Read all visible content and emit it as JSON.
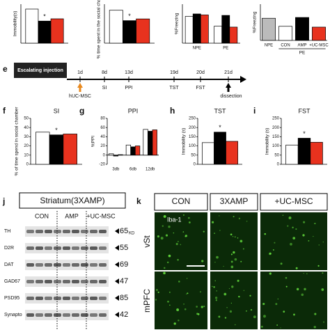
{
  "chart_data": [
    {
      "type": "bar",
      "ylabel": "Immobility(s)",
      "categories": [
        null
      ],
      "series": [
        {
          "color": "#ffffff",
          "values": [
            105
          ]
        },
        {
          "color": "#000000",
          "values": [
            68
          ]
        },
        {
          "color": "#e8321e",
          "values": [
            75
          ]
        }
      ],
      "ylim": [
        0,
        120
      ],
      "annotation": "*"
    },
    {
      "type": "bar",
      "ylabel": "% time spent in the social chamber",
      "categories": [
        null
      ],
      "series": [
        {
          "color": "#ffffff",
          "values": [
            38
          ]
        },
        {
          "color": "#000000",
          "values": [
            26
          ]
        },
        {
          "color": "#e8321e",
          "values": [
            28
          ]
        }
      ],
      "ylim": [
        0,
        45
      ],
      "annotation": "*"
    },
    {
      "type": "bar",
      "ylabel": "%Freezing",
      "categories": [
        "NPE",
        "PE"
      ],
      "series": [
        {
          "color": "#ffffff",
          "values": [
            55,
            35
          ]
        },
        {
          "color": "#000000",
          "values": [
            60,
            57
          ]
        },
        {
          "color": "#e8321e",
          "values": [
            58,
            33
          ]
        }
      ],
      "ylim": [
        0,
        80
      ]
    },
    {
      "type": "bar",
      "ylabel": "%Freezing",
      "categories": [
        "NPE",
        "CON",
        "AMP",
        "+UC-MSC"
      ],
      "group_label": "PE",
      "series": [
        {
          "colors": [
            "#bbbbbb",
            "#ffffff",
            "#000000",
            "#e8321e"
          ],
          "values": [
            55,
            35,
            57,
            33
          ]
        }
      ],
      "ylim": [
        0,
        90
      ]
    },
    {
      "type": "bar",
      "panel": "f",
      "title": "SI",
      "ylabel": "% of time spend in social chamber",
      "categories": [
        null
      ],
      "series": [
        {
          "color": "#ffffff",
          "values": [
            35
          ]
        },
        {
          "color": "#000000",
          "values": [
            32
          ]
        },
        {
          "color": "#e8321e",
          "values": [
            33
          ]
        }
      ],
      "ylim": [
        0,
        50
      ],
      "yticks": [
        0,
        10,
        20,
        30,
        40,
        50
      ],
      "annotation": "*"
    },
    {
      "type": "bar",
      "panel": "g",
      "title": "PPI",
      "ylabel": "%PPI",
      "categories": [
        "3db",
        "6db",
        "12db"
      ],
      "series": [
        {
          "color": "#ffffff",
          "values": [
            3,
            22,
            56
          ]
        },
        {
          "color": "#000000",
          "values": [
            -2,
            18,
            52
          ]
        },
        {
          "color": "#e8321e",
          "values": [
            1,
            20,
            55
          ]
        }
      ],
      "ylim": [
        -20,
        80
      ],
      "yticks": [
        -20,
        0,
        20,
        40,
        60,
        80
      ]
    },
    {
      "type": "bar",
      "panel": "h",
      "title": "TST",
      "ylabel": "Immobility (s)",
      "categories": [
        null
      ],
      "series": [
        {
          "color": "#ffffff",
          "values": [
            118
          ]
        },
        {
          "color": "#000000",
          "values": [
            175
          ]
        },
        {
          "color": "#e8321e",
          "values": [
            125
          ]
        }
      ],
      "ylim": [
        0,
        250
      ],
      "yticks": [
        0,
        50,
        100,
        150,
        200,
        250
      ],
      "annotation": "*"
    },
    {
      "type": "bar",
      "panel": "i",
      "title": "FST",
      "ylabel": "Immobility (s)",
      "categories": [
        null
      ],
      "series": [
        {
          "color": "#ffffff",
          "values": [
            105
          ]
        },
        {
          "color": "#000000",
          "values": [
            142
          ]
        },
        {
          "color": "#e8321e",
          "values": [
            120
          ]
        }
      ],
      "ylim": [
        0,
        250
      ],
      "yticks": [
        0,
        50,
        100,
        150,
        200,
        250
      ],
      "annotation": "*"
    }
  ],
  "timeline": {
    "panel": "e",
    "box": "Escalating injection",
    "days": [
      "1d",
      "8d",
      "13d",
      "19d",
      "20d",
      "21d"
    ],
    "events": [
      "hUC-MSC",
      "SI",
      "PPI",
      "TST",
      "FST",
      "dissection"
    ]
  },
  "blot": {
    "panel": "j",
    "title": "Striatum(3XAMP)",
    "lanes": [
      "CON",
      "AMP",
      "+UC-MSC"
    ],
    "unit": "KD",
    "proteins": [
      {
        "name": "TH",
        "size": 65
      },
      {
        "name": "D2R",
        "size": 55
      },
      {
        "name": "DAT",
        "size": 69
      },
      {
        "name": "GAD67",
        "size": 47
      },
      {
        "name": "PSD95",
        "size": 85
      },
      {
        "name": "Synapto",
        "size": 42
      }
    ]
  },
  "micro": {
    "panel": "k",
    "columns": [
      "CON",
      "3XAMP",
      "+UC-MSC"
    ],
    "rows": [
      "vSt",
      "mPFC"
    ],
    "stain": "Iba-1"
  }
}
